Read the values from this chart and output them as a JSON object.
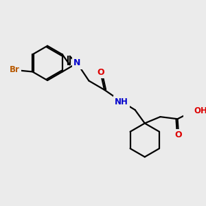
{
  "background_color": "#ebebeb",
  "atom_colors": {
    "C": "#000000",
    "N": "#0000cc",
    "O": "#dd0000",
    "Br": "#b85a00",
    "H": "#000000"
  },
  "bond_color": "#000000",
  "bond_width": 1.6,
  "dbo": 0.065,
  "figsize": [
    3.0,
    3.0
  ],
  "dpi": 100
}
